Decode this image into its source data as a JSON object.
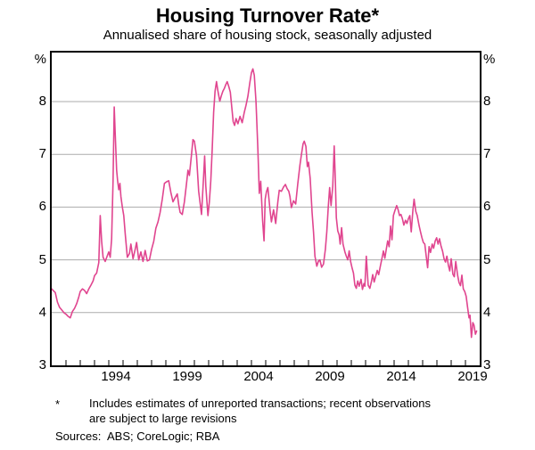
{
  "footnote": {
    "marker": "*",
    "lines": [
      "Includes estimates of unreported transactions; recent observations",
      "are subject to large revisions"
    ]
  },
  "sources": {
    "label": "Sources:",
    "text": "ABS; CoreLogic; RBA"
  },
  "chart_data": {
    "type": "line",
    "title": "Housing Turnover Rate*",
    "subtitle": "Annualised share of housing stock, seasonally adjusted",
    "unit_left": "%",
    "unit_right": "%",
    "xlim": [
      1990,
      2020
    ],
    "ylim": [
      3,
      8.93
    ],
    "ytick_values": [
      3,
      4,
      5,
      6,
      7,
      8
    ],
    "gridline_values": [
      4,
      5,
      6,
      7,
      8
    ],
    "xtick_labels": [
      {
        "label": "1994",
        "year": 1994.5
      },
      {
        "label": "1999",
        "year": 1999.5
      },
      {
        "label": "2004",
        "year": 2004.5
      },
      {
        "label": "2009",
        "year": 2009.5
      },
      {
        "label": "2014",
        "year": 2014.5
      },
      {
        "label": "2019",
        "year": 2019.5
      }
    ],
    "minor_tick_step_years": 1,
    "grid": "horizontal-only",
    "legend": "none",
    "line_color": "#E0458F",
    "grid_color": "#ABABAB",
    "axis_color": "#000000",
    "series": [
      {
        "name": "Housing turnover rate (annualised share of housing stock, seasonally adjusted)",
        "points": [
          [
            1990.0,
            4.45
          ],
          [
            1990.1,
            4.42
          ],
          [
            1990.25,
            4.38
          ],
          [
            1990.4,
            4.2
          ],
          [
            1990.55,
            4.1
          ],
          [
            1990.7,
            4.05
          ],
          [
            1990.85,
            4.0
          ],
          [
            1991.0,
            3.97
          ],
          [
            1991.15,
            3.93
          ],
          [
            1991.3,
            3.9
          ],
          [
            1991.45,
            4.02
          ],
          [
            1991.6,
            4.08
          ],
          [
            1991.75,
            4.17
          ],
          [
            1991.9,
            4.3
          ],
          [
            1992.0,
            4.4
          ],
          [
            1992.15,
            4.45
          ],
          [
            1992.3,
            4.42
          ],
          [
            1992.45,
            4.36
          ],
          [
            1992.6,
            4.45
          ],
          [
            1992.75,
            4.52
          ],
          [
            1992.9,
            4.6
          ],
          [
            1993.0,
            4.7
          ],
          [
            1993.15,
            4.75
          ],
          [
            1993.3,
            4.95
          ],
          [
            1993.4,
            5.84
          ],
          [
            1993.5,
            5.35
          ],
          [
            1993.6,
            5.05
          ],
          [
            1993.75,
            4.97
          ],
          [
            1993.9,
            5.08
          ],
          [
            1994.0,
            5.15
          ],
          [
            1994.1,
            5.05
          ],
          [
            1994.2,
            5.4
          ],
          [
            1994.3,
            6.5
          ],
          [
            1994.38,
            7.9
          ],
          [
            1994.45,
            7.4
          ],
          [
            1994.55,
            6.7
          ],
          [
            1994.62,
            6.5
          ],
          [
            1994.7,
            6.33
          ],
          [
            1994.78,
            6.45
          ],
          [
            1994.85,
            6.2
          ],
          [
            1994.95,
            6.0
          ],
          [
            1995.05,
            5.84
          ],
          [
            1995.15,
            5.5
          ],
          [
            1995.3,
            5.05
          ],
          [
            1995.45,
            5.12
          ],
          [
            1995.55,
            5.3
          ],
          [
            1995.7,
            5.02
          ],
          [
            1995.85,
            5.2
          ],
          [
            1995.95,
            5.33
          ],
          [
            1996.1,
            5.0
          ],
          [
            1996.25,
            5.15
          ],
          [
            1996.4,
            4.97
          ],
          [
            1996.55,
            5.18
          ],
          [
            1996.7,
            4.98
          ],
          [
            1996.85,
            5.0
          ],
          [
            1997.0,
            5.2
          ],
          [
            1997.15,
            5.35
          ],
          [
            1997.3,
            5.6
          ],
          [
            1997.45,
            5.72
          ],
          [
            1997.6,
            5.9
          ],
          [
            1997.75,
            6.15
          ],
          [
            1997.9,
            6.45
          ],
          [
            1998.05,
            6.48
          ],
          [
            1998.2,
            6.5
          ],
          [
            1998.35,
            6.28
          ],
          [
            1998.5,
            6.1
          ],
          [
            1998.65,
            6.18
          ],
          [
            1998.8,
            6.25
          ],
          [
            1998.9,
            6.05
          ],
          [
            1999.0,
            5.9
          ],
          [
            1999.15,
            5.86
          ],
          [
            1999.3,
            6.1
          ],
          [
            1999.45,
            6.45
          ],
          [
            1999.55,
            6.7
          ],
          [
            1999.65,
            6.6
          ],
          [
            1999.8,
            7.0
          ],
          [
            1999.9,
            7.28
          ],
          [
            2000.0,
            7.25
          ],
          [
            2000.15,
            6.97
          ],
          [
            2000.3,
            6.3
          ],
          [
            2000.5,
            5.86
          ],
          [
            2000.65,
            6.6
          ],
          [
            2000.72,
            6.97
          ],
          [
            2000.8,
            6.4
          ],
          [
            2000.95,
            5.84
          ],
          [
            2001.05,
            6.1
          ],
          [
            2001.15,
            6.5
          ],
          [
            2001.25,
            7.1
          ],
          [
            2001.35,
            7.8
          ],
          [
            2001.45,
            8.2
          ],
          [
            2001.55,
            8.38
          ],
          [
            2001.65,
            8.2
          ],
          [
            2001.78,
            8.01
          ],
          [
            2001.9,
            8.12
          ],
          [
            2002.0,
            8.2
          ],
          [
            2002.1,
            8.25
          ],
          [
            2002.2,
            8.32
          ],
          [
            2002.3,
            8.38
          ],
          [
            2002.42,
            8.28
          ],
          [
            2002.52,
            8.18
          ],
          [
            2002.62,
            7.9
          ],
          [
            2002.72,
            7.62
          ],
          [
            2002.82,
            7.55
          ],
          [
            2002.92,
            7.68
          ],
          [
            2003.05,
            7.58
          ],
          [
            2003.2,
            7.72
          ],
          [
            2003.35,
            7.6
          ],
          [
            2003.5,
            7.8
          ],
          [
            2003.62,
            7.93
          ],
          [
            2003.75,
            8.1
          ],
          [
            2003.88,
            8.35
          ],
          [
            2004.0,
            8.55
          ],
          [
            2004.1,
            8.62
          ],
          [
            2004.2,
            8.5
          ],
          [
            2004.32,
            8.0
          ],
          [
            2004.45,
            7.1
          ],
          [
            2004.55,
            6.26
          ],
          [
            2004.65,
            6.49
          ],
          [
            2004.78,
            5.75
          ],
          [
            2004.88,
            5.36
          ],
          [
            2004.96,
            6.15
          ],
          [
            2005.05,
            6.29
          ],
          [
            2005.15,
            6.37
          ],
          [
            2005.3,
            5.95
          ],
          [
            2005.4,
            5.72
          ],
          [
            2005.55,
            5.95
          ],
          [
            2005.7,
            5.69
          ],
          [
            2005.85,
            6.1
          ],
          [
            2005.95,
            6.32
          ],
          [
            2006.1,
            6.3
          ],
          [
            2006.25,
            6.38
          ],
          [
            2006.38,
            6.43
          ],
          [
            2006.5,
            6.35
          ],
          [
            2006.62,
            6.3
          ],
          [
            2006.7,
            6.2
          ],
          [
            2006.8,
            5.99
          ],
          [
            2006.95,
            6.12
          ],
          [
            2007.1,
            6.06
          ],
          [
            2007.25,
            6.45
          ],
          [
            2007.4,
            6.8
          ],
          [
            2007.5,
            6.99
          ],
          [
            2007.62,
            7.2
          ],
          [
            2007.7,
            7.25
          ],
          [
            2007.82,
            7.15
          ],
          [
            2007.92,
            6.77
          ],
          [
            2008.0,
            6.85
          ],
          [
            2008.12,
            6.54
          ],
          [
            2008.25,
            5.9
          ],
          [
            2008.35,
            5.53
          ],
          [
            2008.45,
            5.07
          ],
          [
            2008.58,
            4.88
          ],
          [
            2008.7,
            4.98
          ],
          [
            2008.8,
            5.0
          ],
          [
            2008.92,
            4.86
          ],
          [
            2009.05,
            4.92
          ],
          [
            2009.18,
            5.2
          ],
          [
            2009.28,
            5.53
          ],
          [
            2009.38,
            5.99
          ],
          [
            2009.48,
            6.37
          ],
          [
            2009.58,
            6.03
          ],
          [
            2009.7,
            6.4
          ],
          [
            2009.8,
            7.16
          ],
          [
            2009.88,
            6.5
          ],
          [
            2009.95,
            5.8
          ],
          [
            2010.05,
            5.55
          ],
          [
            2010.15,
            5.47
          ],
          [
            2010.22,
            5.3
          ],
          [
            2010.32,
            5.61
          ],
          [
            2010.42,
            5.3
          ],
          [
            2010.55,
            5.15
          ],
          [
            2010.65,
            5.07
          ],
          [
            2010.75,
            5.0
          ],
          [
            2010.85,
            5.17
          ],
          [
            2010.95,
            4.97
          ],
          [
            2011.05,
            4.85
          ],
          [
            2011.15,
            4.75
          ],
          [
            2011.25,
            4.52
          ],
          [
            2011.35,
            4.46
          ],
          [
            2011.45,
            4.6
          ],
          [
            2011.55,
            4.5
          ],
          [
            2011.68,
            4.63
          ],
          [
            2011.78,
            4.44
          ],
          [
            2011.88,
            4.55
          ],
          [
            2011.95,
            4.5
          ],
          [
            2012.05,
            5.07
          ],
          [
            2012.18,
            4.52
          ],
          [
            2012.3,
            4.46
          ],
          [
            2012.42,
            4.6
          ],
          [
            2012.5,
            4.72
          ],
          [
            2012.6,
            4.58
          ],
          [
            2012.72,
            4.7
          ],
          [
            2012.82,
            4.8
          ],
          [
            2012.92,
            4.72
          ],
          [
            2013.05,
            4.9
          ],
          [
            2013.15,
            5.03
          ],
          [
            2013.25,
            5.17
          ],
          [
            2013.35,
            5.03
          ],
          [
            2013.48,
            5.25
          ],
          [
            2013.55,
            5.36
          ],
          [
            2013.65,
            5.25
          ],
          [
            2013.75,
            5.64
          ],
          [
            2013.85,
            5.38
          ],
          [
            2013.95,
            5.84
          ],
          [
            2014.05,
            5.93
          ],
          [
            2014.18,
            6.03
          ],
          [
            2014.28,
            5.95
          ],
          [
            2014.38,
            5.84
          ],
          [
            2014.48,
            5.86
          ],
          [
            2014.58,
            5.78
          ],
          [
            2014.68,
            5.66
          ],
          [
            2014.8,
            5.75
          ],
          [
            2014.9,
            5.69
          ],
          [
            2015.0,
            5.78
          ],
          [
            2015.1,
            5.84
          ],
          [
            2015.2,
            5.53
          ],
          [
            2015.32,
            5.95
          ],
          [
            2015.4,
            6.15
          ],
          [
            2015.52,
            5.92
          ],
          [
            2015.62,
            5.84
          ],
          [
            2015.75,
            5.65
          ],
          [
            2015.85,
            5.53
          ],
          [
            2015.95,
            5.42
          ],
          [
            2016.05,
            5.33
          ],
          [
            2016.15,
            5.3
          ],
          [
            2016.25,
            5.07
          ],
          [
            2016.35,
            4.85
          ],
          [
            2016.45,
            5.25
          ],
          [
            2016.55,
            5.14
          ],
          [
            2016.67,
            5.3
          ],
          [
            2016.77,
            5.22
          ],
          [
            2016.88,
            5.36
          ],
          [
            2016.98,
            5.42
          ],
          [
            2017.08,
            5.3
          ],
          [
            2017.18,
            5.4
          ],
          [
            2017.28,
            5.27
          ],
          [
            2017.4,
            5.16
          ],
          [
            2017.5,
            5.02
          ],
          [
            2017.6,
            4.96
          ],
          [
            2017.7,
            5.07
          ],
          [
            2017.8,
            4.9
          ],
          [
            2017.9,
            4.79
          ],
          [
            2018.0,
            5.02
          ],
          [
            2018.12,
            4.73
          ],
          [
            2018.22,
            4.68
          ],
          [
            2018.32,
            4.97
          ],
          [
            2018.45,
            4.71
          ],
          [
            2018.55,
            4.57
          ],
          [
            2018.65,
            4.51
          ],
          [
            2018.75,
            4.71
          ],
          [
            2018.85,
            4.45
          ],
          [
            2018.95,
            4.4
          ],
          [
            2019.05,
            4.31
          ],
          [
            2019.15,
            4.1
          ],
          [
            2019.25,
            3.9
          ],
          [
            2019.32,
            3.95
          ],
          [
            2019.42,
            3.53
          ],
          [
            2019.52,
            3.81
          ],
          [
            2019.6,
            3.76
          ],
          [
            2019.7,
            3.59
          ],
          [
            2019.78,
            3.65
          ]
        ]
      }
    ]
  }
}
